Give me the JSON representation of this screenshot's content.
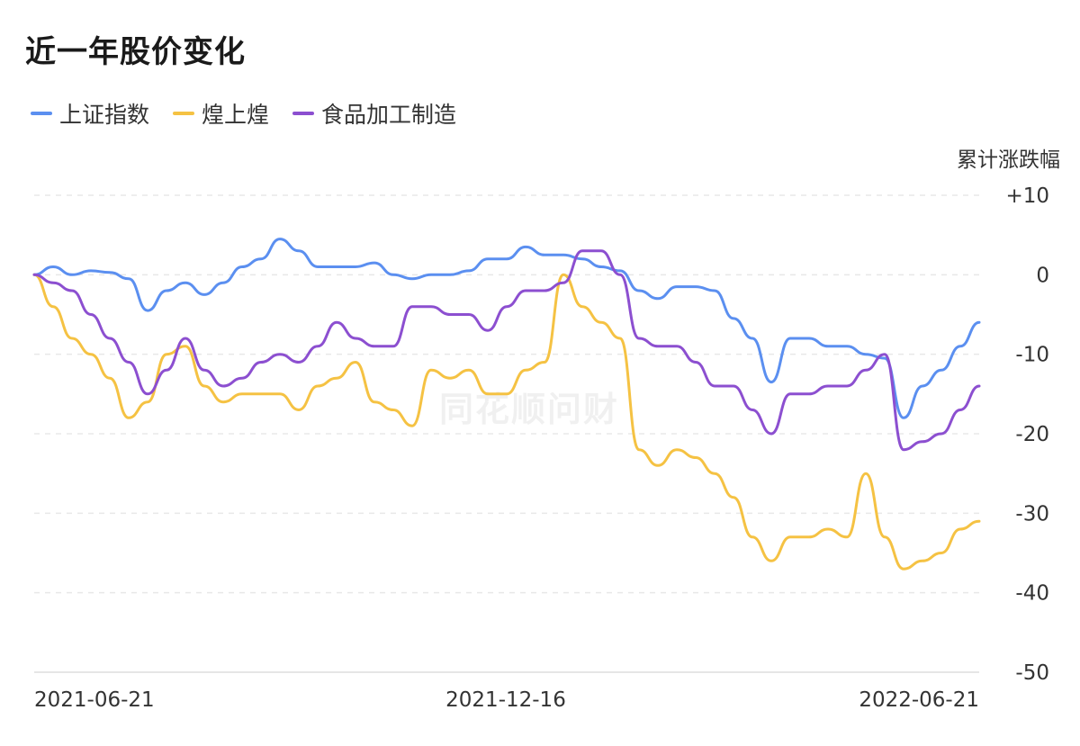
{
  "title": "近一年股价变化",
  "unit_label": "累计涨跌幅",
  "watermark": "同花顺问财",
  "chart_data": {
    "type": "line",
    "title": "近一年股价变化",
    "ylabel": "累计涨跌幅",
    "ylim": [
      -50,
      10
    ],
    "y_ticks": [
      "+10",
      "0",
      "-10",
      "-20",
      "-30",
      "-40",
      "-50"
    ],
    "x_ticks": [
      "2021-06-21",
      "2021-12-16",
      "2022-06-21"
    ],
    "grid": true,
    "legend_position": "top-left",
    "x": [
      0,
      0.02,
      0.04,
      0.06,
      0.08,
      0.1,
      0.12,
      0.14,
      0.16,
      0.18,
      0.2,
      0.22,
      0.24,
      0.26,
      0.28,
      0.3,
      0.32,
      0.34,
      0.36,
      0.38,
      0.4,
      0.42,
      0.44,
      0.46,
      0.48,
      0.5,
      0.52,
      0.54,
      0.56,
      0.58,
      0.6,
      0.62,
      0.64,
      0.66,
      0.68,
      0.7,
      0.72,
      0.74,
      0.76,
      0.78,
      0.8,
      0.82,
      0.84,
      0.86,
      0.88,
      0.9,
      0.92,
      0.94,
      0.96,
      0.98,
      1.0
    ],
    "series": [
      {
        "name": "上证指数",
        "color": "#5b8ff0",
        "values": [
          0,
          1,
          0,
          0.5,
          0.3,
          -0.5,
          -4.5,
          -2,
          -1,
          -2.5,
          -1,
          1,
          2,
          4.5,
          3,
          1,
          1,
          1,
          1.5,
          0,
          -0.5,
          0,
          0,
          0.5,
          2,
          2,
          3.5,
          2.5,
          2.5,
          2,
          1,
          0.5,
          -2,
          -3,
          -1.5,
          -1.5,
          -2,
          -5.5,
          -8,
          -13.5,
          -8,
          -8,
          -9,
          -9,
          -10,
          -10.5,
          -18,
          -14,
          -12,
          -9,
          -6
        ]
      },
      {
        "name": "煌上煌",
        "color": "#f5c243",
        "values": [
          0,
          -4,
          -8,
          -10,
          -13,
          -18,
          -16,
          -10,
          -9,
          -14,
          -16,
          -15,
          -15,
          -15,
          -17,
          -14,
          -13,
          -11,
          -16,
          -17,
          -19,
          -12,
          -13,
          -12,
          -15,
          -15,
          -12,
          -11,
          0,
          -4,
          -6,
          -8,
          -22,
          -24,
          -22,
          -23,
          -25,
          -28,
          -33,
          -36,
          -33,
          -33,
          -32,
          -33,
          -25,
          -33,
          -37,
          -36,
          -35,
          -32,
          -31
        ]
      },
      {
        "name": "食品加工制造",
        "color": "#8c4fd0",
        "values": [
          0,
          -1,
          -2,
          -5,
          -8,
          -11,
          -15,
          -12,
          -8,
          -12,
          -14,
          -13,
          -11,
          -10,
          -11,
          -9,
          -6,
          -8,
          -9,
          -9,
          -4,
          -4,
          -5,
          -5,
          -7,
          -4,
          -2,
          -2,
          -1,
          3,
          3,
          0,
          -8,
          -9,
          -9,
          -11,
          -14,
          -14,
          -17,
          -20,
          -15,
          -15,
          -14,
          -14,
          -12,
          -10,
          -22,
          -21,
          -20,
          -17,
          -14
        ]
      }
    ]
  }
}
